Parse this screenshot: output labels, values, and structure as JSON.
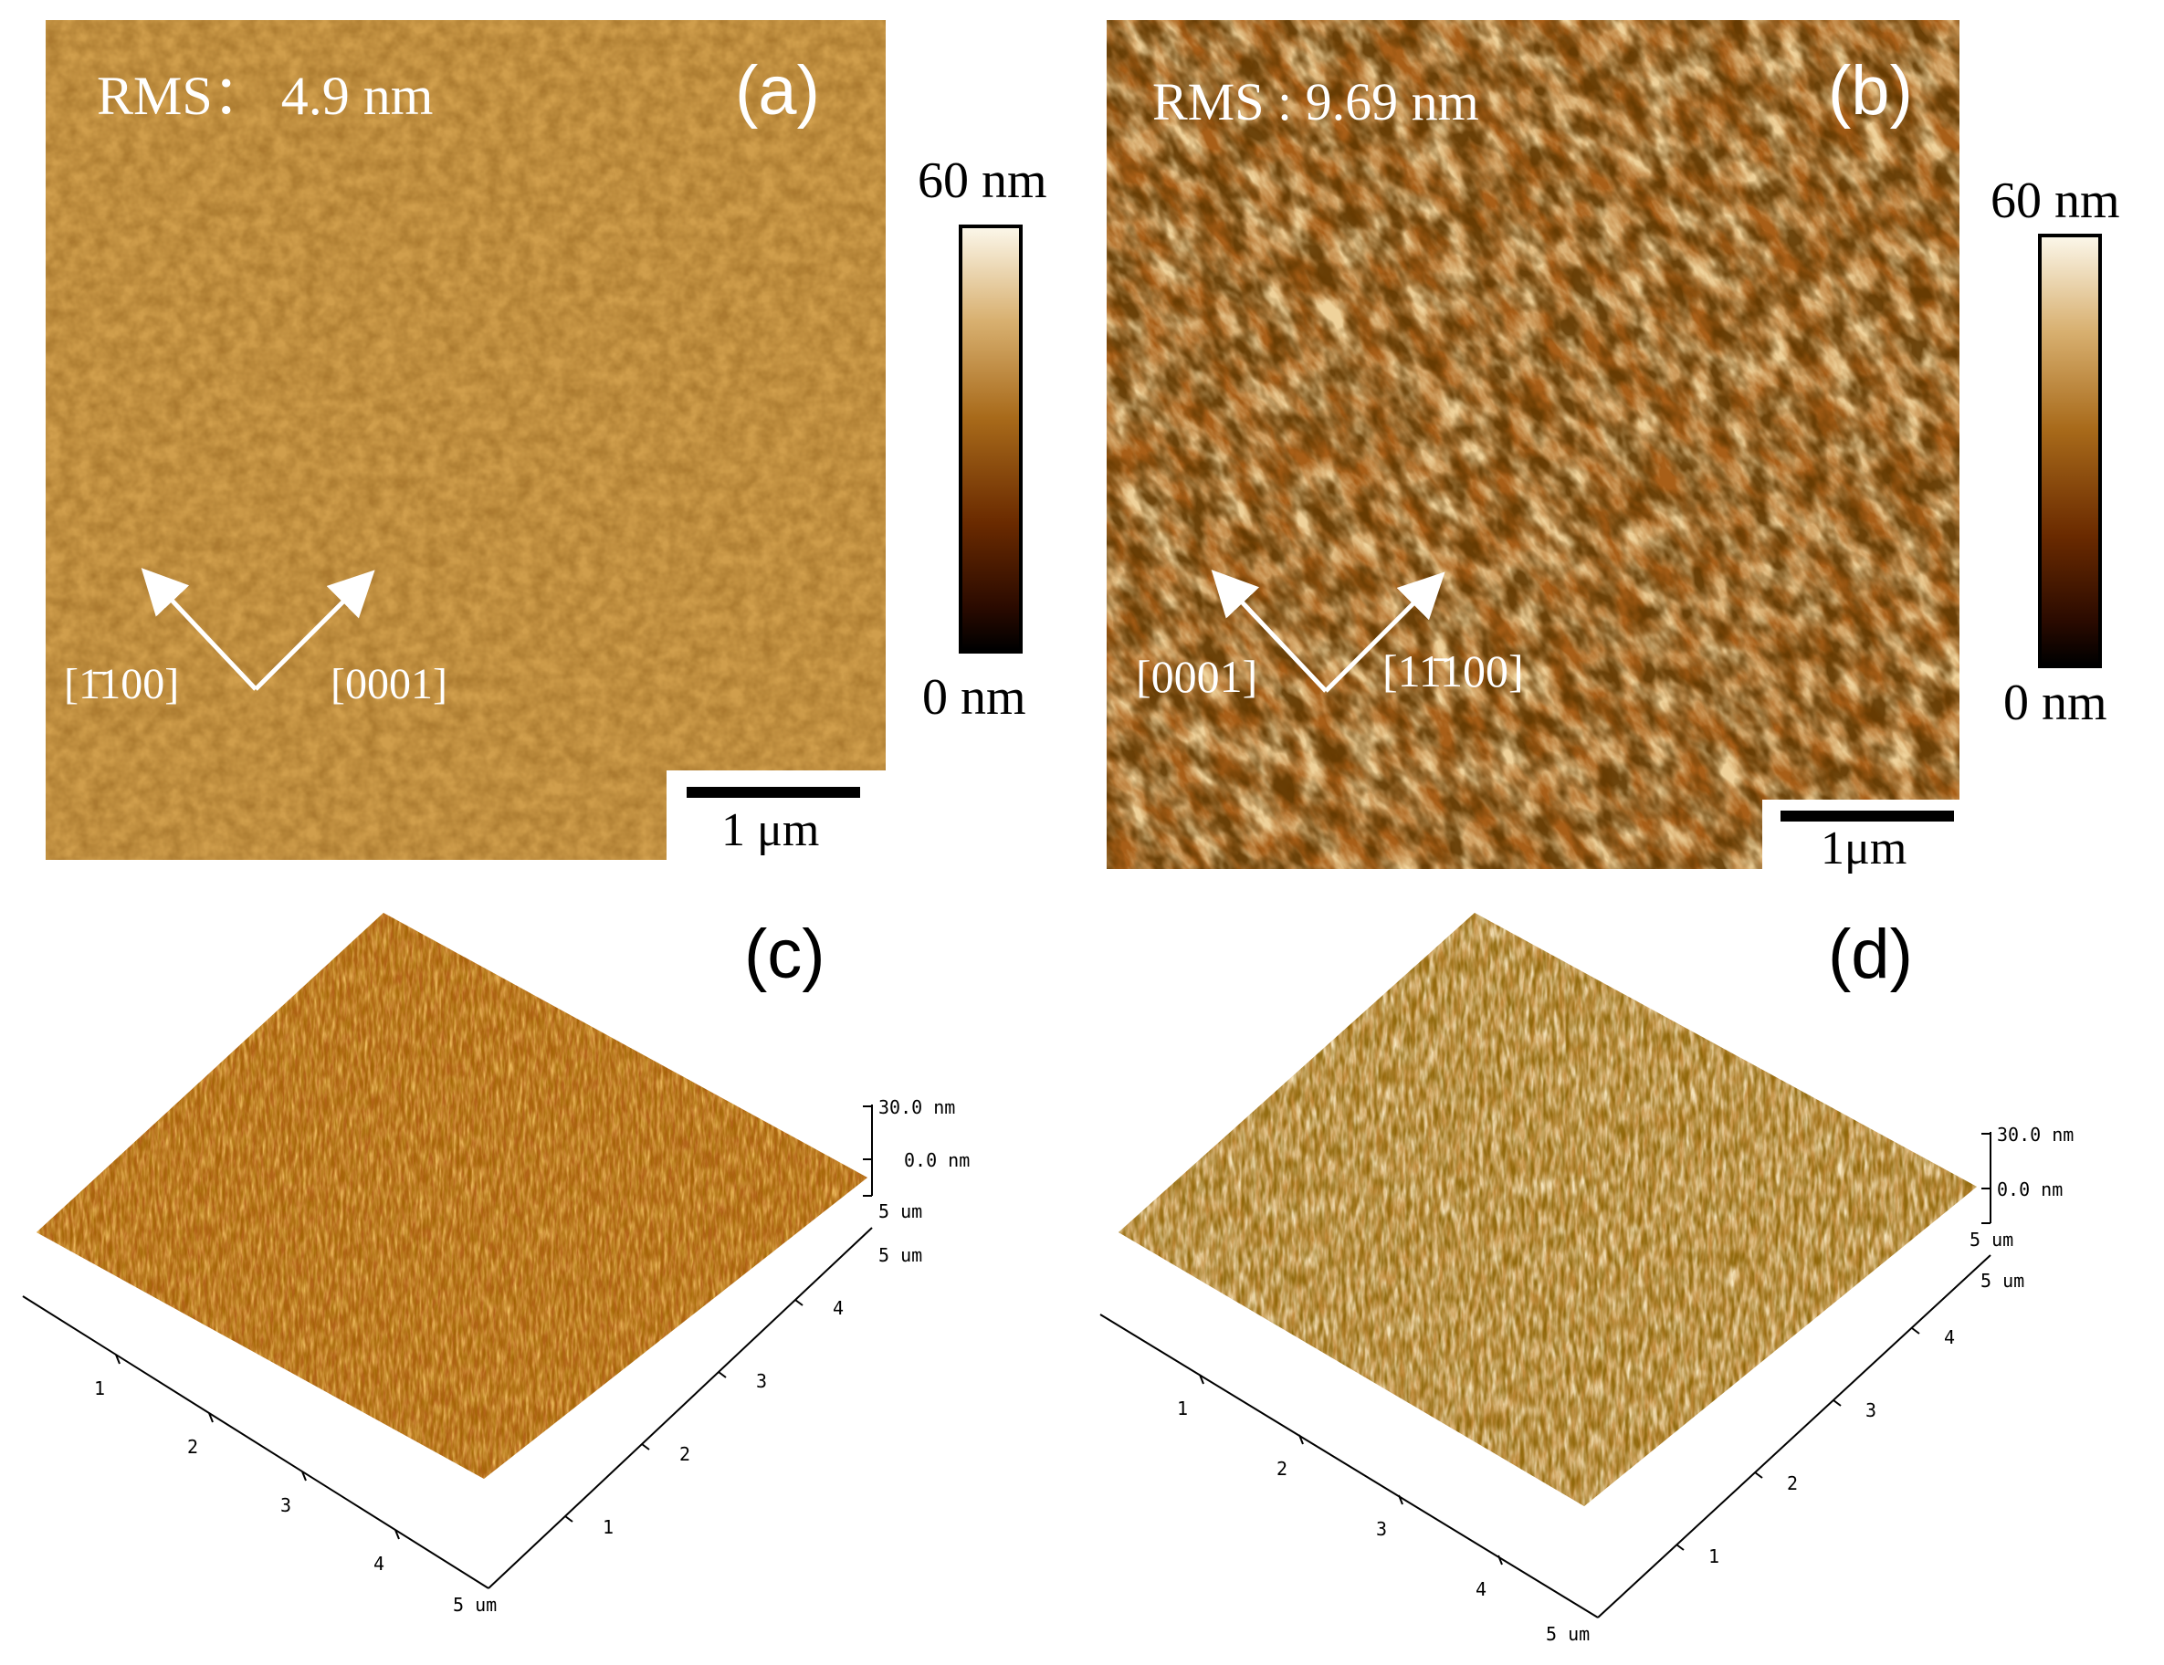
{
  "panels": {
    "a": {
      "letter": "(a)",
      "rms": "RMS： 4.9 nm",
      "dir_left": "[1̄100]",
      "dir_right": "[0001]",
      "scale_bar": "1 μm"
    },
    "b": {
      "letter": "(b)",
      "rms": "RMS : 9.69 nm",
      "dir_left": "[0001]",
      "dir_right": "[11̄100]",
      "scale_bar": "1μm"
    },
    "c": {
      "letter": "(c)",
      "z_top": "30.0 nm",
      "z_mid": "0.0 nm",
      "z_bot": "5 um",
      "x_end": "5 um",
      "y_end": "5 um",
      "x_ticks": [
        "1",
        "2",
        "3",
        "4"
      ],
      "y_ticks": [
        "1",
        "2",
        "3",
        "4"
      ]
    },
    "d": {
      "letter": "(d)",
      "z_top": "30.0 nm",
      "z_mid": "0.0 nm",
      "z_bot": "5 um",
      "x_end": "5 um",
      "y_end": "5 um",
      "x_ticks": [
        "1",
        "2",
        "3",
        "4"
      ],
      "y_ticks": [
        "1",
        "2",
        "3",
        "4"
      ]
    }
  },
  "colorbars": {
    "a": {
      "top": "60 nm",
      "bottom": "0 nm"
    },
    "b": {
      "top": "60 nm",
      "bottom": "0 nm"
    }
  }
}
